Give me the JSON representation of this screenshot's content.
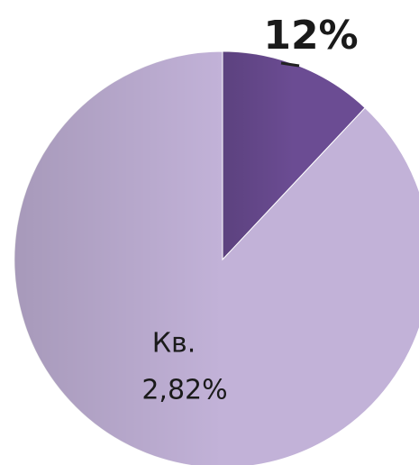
{
  "chart_data": {
    "type": "pie",
    "categories": [
      null,
      "Кв."
    ],
    "values": [
      12,
      88
    ],
    "value_labels": [
      "12%",
      null
    ],
    "annotations": [
      "2,82%"
    ],
    "colors": [
      "#6b4c93",
      "#c2b2d8"
    ]
  }
}
